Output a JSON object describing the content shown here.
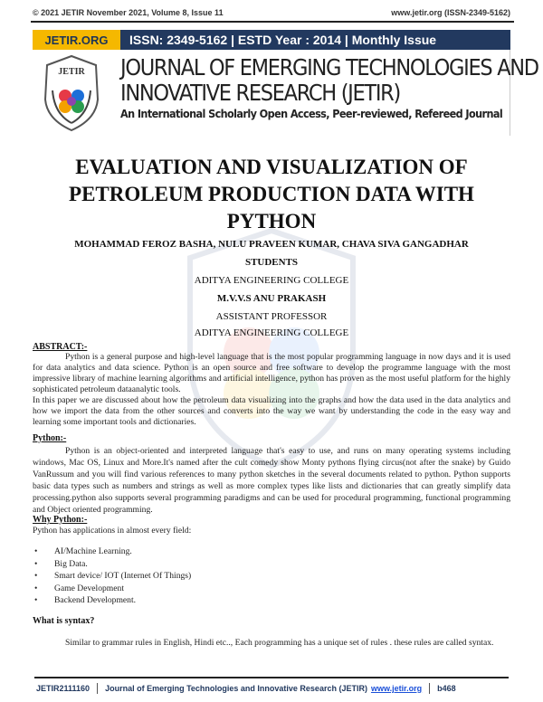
{
  "header": {
    "left": "© 2021 JETIR November 2021, Volume 8, Issue 11",
    "right": "www.jetir.org (ISSN-2349-5162)"
  },
  "banner": {
    "brand": "JETIR.ORG",
    "info": "ISSN: 2349-5162 | ESTD Year : 2014 | Monthly Issue",
    "logo_text": "JETIR",
    "journal_line1": "JOURNAL OF EMERGING TECHNOLOGIES AND",
    "journal_line2": "INNOVATIVE RESEARCH (JETIR)",
    "tagline": "An International Scholarly Open Access, Peer-reviewed, Refereed Journal"
  },
  "paper": {
    "title": "EVALUATION AND VISUALIZATION OF PETROLEUM PRODUCTION DATA WITH PYTHON",
    "authors": "MOHAMMAD FEROZ BASHA, NULU PRAVEEN KUMAR, CHAVA SIVA GANGADHAR",
    "role1": "STUDENTS",
    "college1": "ADITYA ENGINEERING COLLEGE",
    "guide": "M.V.V.S ANU PRAKASH",
    "role2": "ASSISTANT PROFESSOR",
    "college2": "ADITYA ENGINEERING COLLEGE",
    "abstract_heading": "ABSTRACT:-",
    "abstract_p1": "Python is a general purpose and high-level language that is the most popular programming language in now days and it is used for data analytics and data science. Python is an open source and free software to develop the programme language with the most impressive library of machine learning algorithms and artificial intelligence, python has proven as the most useful platform for the highly sophisticated petroleum dataanalytic tools.",
    "abstract_p2": "In this paper we are discussed about how the petroleum data visualizing into the graphs and how the data used in the data analytics and how we import the data from the other sources and converts into the way we want by understanding the code in the easy way and learning some important tools and dictionaries.",
    "python_heading": "Python:-",
    "python_p": "Python is an object-oriented and interpreted language that's easy to use, and runs on many operating systems including windows, Mac OS, Linux and More.It's named after the cult comedy show Monty pythons flying circus(not after the snake) by Guido VanRussum  and you will find various references to many python sketches in the several documents related to python. Python supports basic data types such as numbers and strings as well as more complex types like lists and dictionaries that can greatly simplify data processing.python also supports several programming paradigms and can be used for procedural programming, functional programming and Object oriented programming.",
    "why_heading": "Why Python:-",
    "why_intro": "Python has applications in almost every field:",
    "why_items": [
      "AI/Machine Learning.",
      "Big Data.",
      "Smart device/ IOT (Internet Of Things)",
      "Game Development",
      "Backend Development."
    ],
    "syntax_heading": "What is syntax?",
    "syntax_p": "Similar to grammar rules in English, Hindi etc.., Each programming has a unique set of rules . these rules are called syntax."
  },
  "footer": {
    "id": "JETIR2111160",
    "journal": "Journal of Emerging Technologies and Innovative Research (JETIR)",
    "link": "www.jetir.org",
    "page": "b468"
  }
}
